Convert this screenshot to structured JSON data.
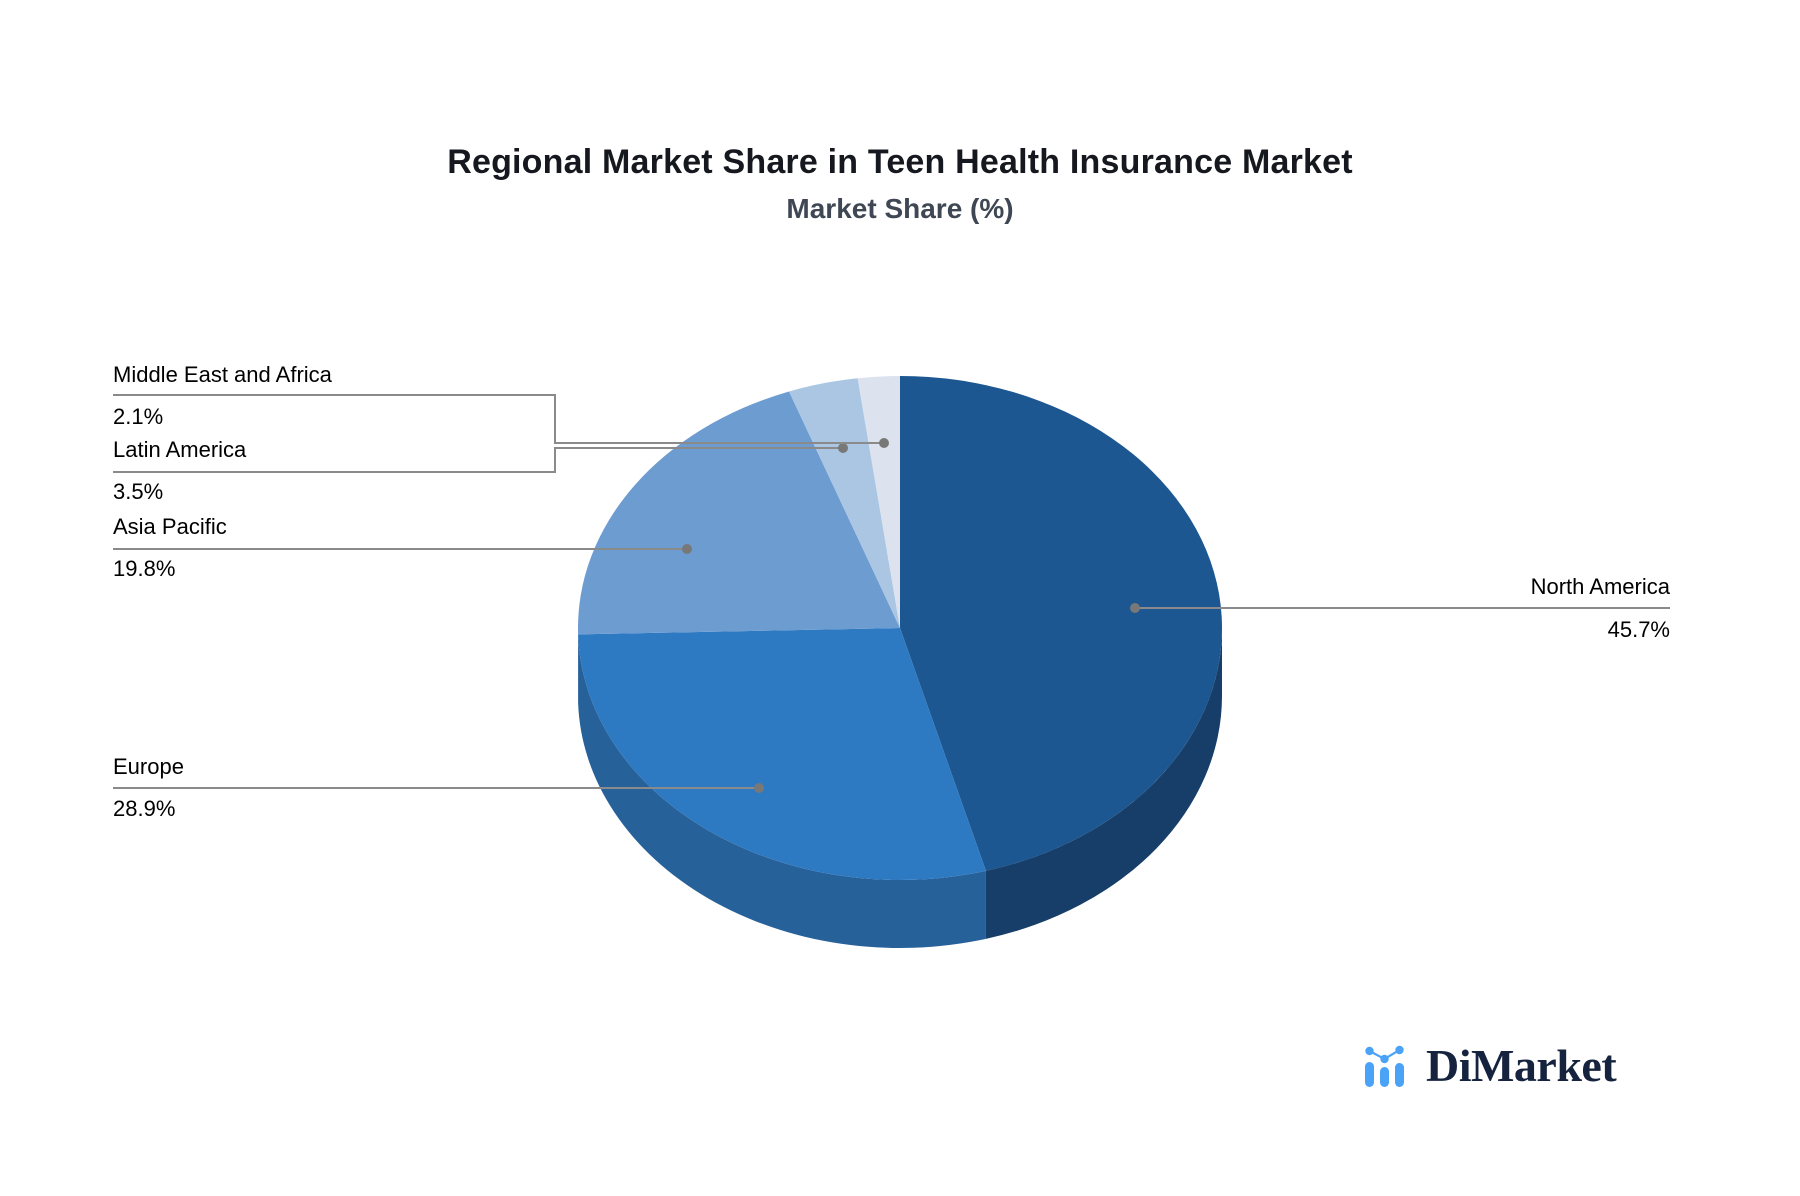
{
  "title": "Regional Market Share in Teen Health Insurance Market",
  "subtitle": "Market Share (%)",
  "brand": {
    "name": "DiMarket"
  },
  "chart_data": {
    "type": "pie",
    "title": "Regional Market Share in Teen Health Insurance Market",
    "subtitle": "Market Share (%)",
    "unit": "%",
    "style": "3d-pie",
    "start_angle_deg": 90,
    "direction": "clockwise",
    "legend_position": "callout-labels",
    "slices": [
      {
        "label": "North America",
        "value": 45.7,
        "display": "45.7%",
        "color": "#1d5791",
        "side_color": "#163e68",
        "label_side": "right"
      },
      {
        "label": "Europe",
        "value": 28.9,
        "display": "28.9%",
        "color": "#2e7ac2",
        "side_color": "#27619a",
        "label_side": "left"
      },
      {
        "label": "Asia Pacific",
        "value": 19.8,
        "display": "19.8%",
        "color": "#6d9cd1",
        "side_color": "#4f7fb3",
        "label_side": "left"
      },
      {
        "label": "Latin America",
        "value": 3.5,
        "display": "3.5%",
        "color": "#aac6e3",
        "side_color": "#8aa9c9",
        "label_side": "left"
      },
      {
        "label": "Middle East and Africa",
        "value": 2.1,
        "display": "2.1%",
        "color": "#dce3ee",
        "side_color": "#b9c3d4",
        "label_side": "left"
      }
    ]
  },
  "colors": {
    "background": "#ffffff",
    "leader_line": "#8a8a8a",
    "leader_dot": "#787878",
    "label_text": "#262626",
    "pct_text": "#9b9b9b",
    "title_text": "#15181e",
    "subtitle_text": "#3f4754",
    "brand_text": "#15233f",
    "brand_accent": "#4aa3f7"
  }
}
